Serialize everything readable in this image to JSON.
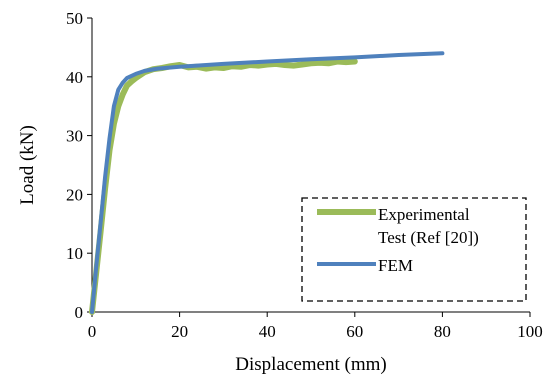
{
  "chart_data": {
    "type": "line",
    "title": "",
    "xlabel": "Displacement (mm)",
    "ylabel": "Load (kN)",
    "xlim": [
      0,
      100
    ],
    "ylim": [
      0,
      50
    ],
    "x_ticks": [
      "0",
      "20",
      "40",
      "60",
      "80",
      "100"
    ],
    "y_ticks": [
      "0",
      "10",
      "20",
      "30",
      "40",
      "50"
    ],
    "grid": false,
    "legend_position": "bottom-right",
    "series": [
      {
        "name_lines": [
          "Experimental",
          "Test (Ref [20])"
        ],
        "color": "#9BBB59",
        "points": [
          [
            0,
            0
          ],
          [
            1,
            7
          ],
          [
            2,
            14
          ],
          [
            3,
            21
          ],
          [
            4,
            27.5
          ],
          [
            5,
            32
          ],
          [
            6,
            35
          ],
          [
            7,
            37
          ],
          [
            8,
            38.5
          ],
          [
            9,
            39.2
          ],
          [
            10,
            39.8
          ],
          [
            12,
            40.8
          ],
          [
            14,
            41.3
          ],
          [
            16,
            41.5
          ],
          [
            18,
            41.8
          ],
          [
            20,
            42.0
          ],
          [
            22,
            41.6
          ],
          [
            24,
            41.7
          ],
          [
            26,
            41.4
          ],
          [
            28,
            41.6
          ],
          [
            30,
            41.5
          ],
          [
            32,
            41.8
          ],
          [
            34,
            41.7
          ],
          [
            36,
            42.0
          ],
          [
            38,
            41.9
          ],
          [
            40,
            42.1
          ],
          [
            42,
            42.2
          ],
          [
            44,
            42.0
          ],
          [
            46,
            41.9
          ],
          [
            48,
            42.1
          ],
          [
            50,
            42.3
          ],
          [
            52,
            42.4
          ],
          [
            54,
            42.3
          ],
          [
            56,
            42.6
          ],
          [
            58,
            42.5
          ],
          [
            60,
            42.6
          ]
        ]
      },
      {
        "name": "FEM",
        "color": "#4F81BD",
        "points": [
          [
            0,
            0
          ],
          [
            1,
            8
          ],
          [
            2,
            15.5
          ],
          [
            3,
            23
          ],
          [
            4,
            29.5
          ],
          [
            5,
            35
          ],
          [
            6,
            37.8
          ],
          [
            7,
            39
          ],
          [
            8,
            39.8
          ],
          [
            10,
            40.5
          ],
          [
            12,
            41
          ],
          [
            15,
            41.4
          ],
          [
            20,
            41.7
          ],
          [
            30,
            42.2
          ],
          [
            40,
            42.6
          ],
          [
            50,
            43.0
          ],
          [
            60,
            43.3
          ],
          [
            70,
            43.7
          ],
          [
            80,
            44.0
          ]
        ]
      }
    ]
  }
}
